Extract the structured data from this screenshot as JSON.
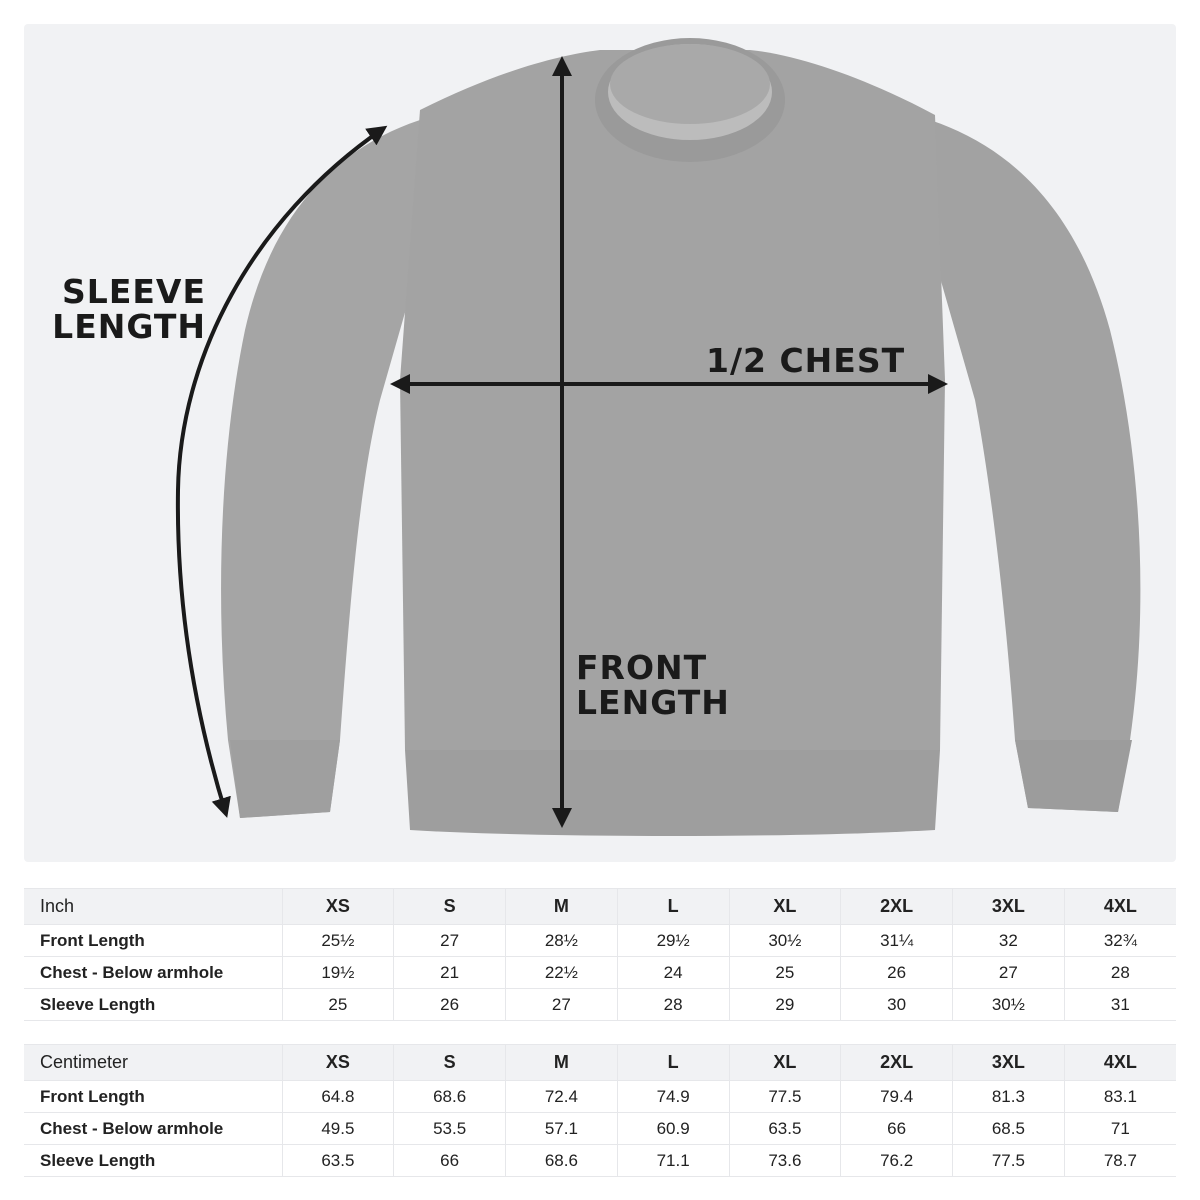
{
  "diagram": {
    "labels": {
      "sleeve_line1": "SLEEVE",
      "sleeve_line2": "LENGTH",
      "chest": "1/2 CHEST",
      "front_line1": "FRONT",
      "front_line2": "LENGTH"
    },
    "garment_color": "#a3a3a3",
    "background_color": "#f1f2f4"
  },
  "sizes": [
    "XS",
    "S",
    "M",
    "L",
    "XL",
    "2XL",
    "3XL",
    "4XL"
  ],
  "inch_table": {
    "unit": "Inch",
    "rows": [
      {
        "label": "Front Length",
        "values": [
          "25½",
          "27",
          "28½",
          "29½",
          "30½",
          "31¼",
          "32",
          "32¾"
        ]
      },
      {
        "label": "Chest - Below armhole",
        "values": [
          "19½",
          "21",
          "22½",
          "24",
          "25",
          "26",
          "27",
          "28"
        ]
      },
      {
        "label": "Sleeve Length",
        "values": [
          "25",
          "26",
          "27",
          "28",
          "29",
          "30",
          "30½",
          "31"
        ]
      }
    ]
  },
  "cm_table": {
    "unit": "Centimeter",
    "rows": [
      {
        "label": "Front Length",
        "values": [
          "64.8",
          "68.6",
          "72.4",
          "74.9",
          "77.5",
          "79.4",
          "81.3",
          "83.1"
        ]
      },
      {
        "label": "Chest - Below armhole",
        "values": [
          "49.5",
          "53.5",
          "57.1",
          "60.9",
          "63.5",
          "66",
          "68.5",
          "71"
        ]
      },
      {
        "label": "Sleeve Length",
        "values": [
          "63.5",
          "66",
          "68.6",
          "71.1",
          "73.6",
          "76.2",
          "77.5",
          "78.7"
        ]
      }
    ]
  }
}
